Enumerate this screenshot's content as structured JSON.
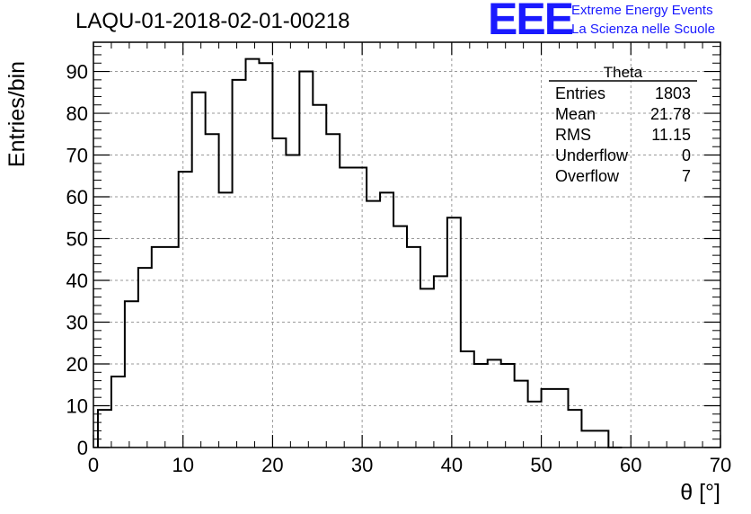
{
  "title": "LAQU-01-2018-02-01-00218",
  "logo": {
    "mark": "EEE",
    "line1": "Extreme Energy Events",
    "line2": "La Scienza nelle Scuole",
    "color": "#1a1aff"
  },
  "stats": {
    "name": "Theta",
    "rows": [
      {
        "label": "Entries",
        "value": "1803"
      },
      {
        "label": "Mean",
        "value": "21.78"
      },
      {
        "label": "RMS",
        "value": "11.15"
      },
      {
        "label": "Underflow",
        "value": "0"
      },
      {
        "label": "Overflow",
        "value": "7"
      }
    ]
  },
  "chart_data": {
    "type": "bar",
    "style": "step-histogram",
    "xlabel": "θ [°]",
    "ylabel": "Entries/bin",
    "xlim": [
      0,
      70
    ],
    "ylim": [
      0,
      97
    ],
    "grid": true,
    "bin_width": 1.5,
    "x_start": 0.5,
    "values": [
      9,
      17,
      35,
      43,
      48,
      48,
      66,
      85,
      75,
      61,
      88,
      93,
      92,
      74,
      70,
      90,
      82,
      75,
      67,
      67,
      59,
      61,
      53,
      48,
      38,
      41,
      55,
      23,
      20,
      21,
      20,
      16,
      11,
      14,
      14,
      9,
      4,
      4,
      0
    ],
    "x_ticks": [
      0,
      10,
      20,
      30,
      40,
      50,
      60,
      70
    ],
    "y_ticks": [
      0,
      10,
      20,
      30,
      40,
      50,
      60,
      70,
      80,
      90
    ],
    "line_color": "#000000"
  }
}
